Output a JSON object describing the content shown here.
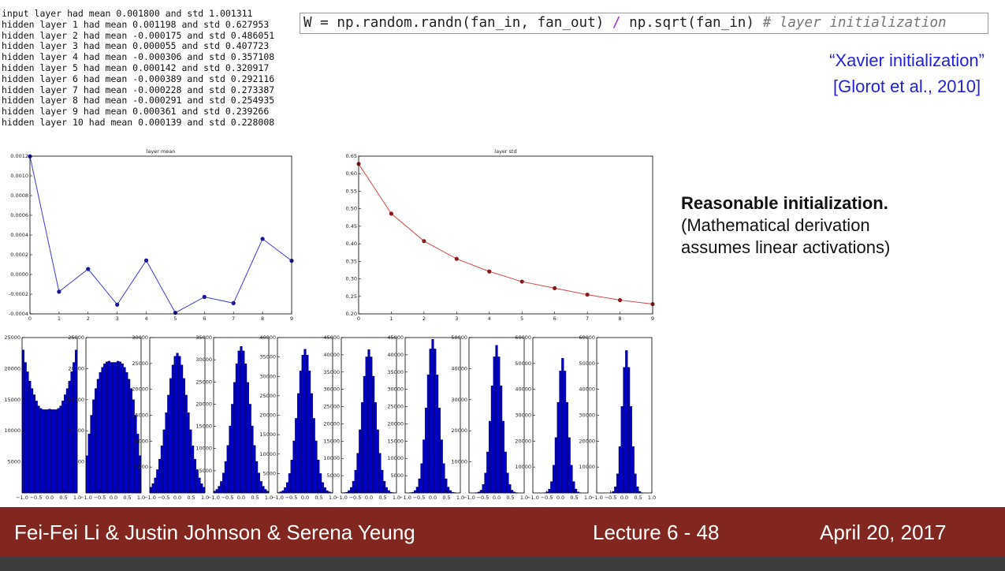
{
  "log": [
    "input layer had mean 0.001800 and std 1.001311",
    "hidden layer 1 had mean 0.001198 and std 0.627953",
    "hidden layer 2 had mean -0.000175 and std 0.486051",
    "hidden layer 3 had mean 0.000055 and std 0.407723",
    "hidden layer 4 had mean -0.000306 and std 0.357108",
    "hidden layer 5 had mean 0.000142 and std 0.320917",
    "hidden layer 6 had mean -0.000389 and std 0.292116",
    "hidden layer 7 had mean -0.000228 and std 0.273387",
    "hidden layer 8 had mean -0.000291 and std 0.254935",
    "hidden layer 9 had mean 0.000361 and std 0.239266",
    "hidden layer 10 had mean 0.000139 and std 0.228008"
  ],
  "code": [
    "W = np.random.randn(fan_in, fan_out)",
    "/",
    "np.sqrt(fan_in)",
    "# layer initialization"
  ],
  "citation": [
    "“Xavier initialization”",
    "[Glorot et al., 2010]"
  ],
  "note": {
    "heading": "Reasonable initialization.",
    "lines": [
      "(Mathematical derivation",
      "assumes linear activations)"
    ]
  },
  "footer": {
    "authors": "Fei-Fei Li & Justin Johnson & Serena Yeung",
    "lecture": "Lecture 6 - 48",
    "date": "April 20, 2017"
  },
  "chart_data": [
    {
      "type": "line",
      "title": "layer mean",
      "x": [
        0,
        1,
        2,
        3,
        4,
        5,
        6,
        7,
        8,
        9
      ],
      "values": [
        0.001198,
        -0.000175,
        5.5e-05,
        -0.000306,
        0.000142,
        -0.000389,
        -0.000228,
        -0.000291,
        0.000361,
        0.000139
      ],
      "color": "#3b3bd6",
      "marker_color": "#1a1a9a",
      "xlim": [
        0,
        9
      ],
      "xticks": [
        0,
        1,
        2,
        3,
        4,
        5,
        6,
        7,
        8,
        9
      ],
      "ylim": [
        -0.0004,
        0.0012
      ],
      "yticks": [
        -0.0004,
        -0.0002,
        {
          "value": 0,
          "label": "0.0000"
        },
        0.0002,
        0.0004,
        0.0006,
        0.0008,
        {
          "value": 0.001,
          "label": "0.0010"
        },
        0.0012
      ]
    },
    {
      "type": "line",
      "title": "layer std",
      "x": [
        0,
        1,
        2,
        3,
        4,
        5,
        6,
        7,
        8,
        9
      ],
      "values": [
        0.627953,
        0.486051,
        0.407723,
        0.357108,
        0.320917,
        0.292116,
        0.273387,
        0.254935,
        0.239266,
        0.228008
      ],
      "color": "#d04a4a",
      "marker_color": "#8b1a1a",
      "xlim": [
        0,
        9
      ],
      "xticks": [
        0,
        1,
        2,
        3,
        4,
        5,
        6,
        7,
        8,
        9
      ],
      "ylim": [
        0.2,
        0.65
      ],
      "yticks": [
        {
          "value": 0.2,
          "label": "0.20"
        },
        0.25,
        {
          "value": 0.3,
          "label": "0.30"
        },
        0.35,
        {
          "value": 0.4,
          "label": "0.40"
        },
        0.45,
        {
          "value": 0.5,
          "label": "0.50"
        },
        0.55,
        {
          "value": 0.6,
          "label": "0.60"
        },
        0.65
      ]
    },
    {
      "type": "histogram",
      "color": "#0000c8",
      "bins": [
        -1,
        -0.92,
        -0.84,
        -0.76,
        -0.68,
        -0.6,
        -0.52,
        -0.44,
        -0.36,
        -0.28,
        -0.2,
        -0.12,
        -0.04,
        0.04,
        0.12,
        0.2,
        0.28,
        0.36,
        0.44,
        0.52,
        0.6,
        0.68,
        0.76,
        0.84,
        0.92,
        1
      ],
      "values": [
        23000,
        21000,
        19500,
        18000,
        16800,
        15800,
        14800,
        14000,
        13600,
        13400,
        13400,
        13400,
        13500,
        13400,
        13400,
        13400,
        13600,
        14000,
        14800,
        15800,
        16800,
        18000,
        19500,
        21000,
        23000
      ],
      "xlim": [
        -1,
        1
      ],
      "xticks": [
        {
          "value": -1,
          "label": "−1.0"
        },
        {
          "value": -0.5,
          "label": "−0.5"
        },
        {
          "value": 0,
          "label": "0.0"
        },
        0.5,
        {
          "value": 1,
          "label": "1.0"
        }
      ],
      "ylim": [
        0,
        25000
      ],
      "yticks": [
        5000,
        10000,
        15000,
        20000,
        25000
      ]
    },
    {
      "type": "histogram",
      "color": "#0000c8",
      "bins": [
        -1,
        -0.92,
        -0.84,
        -0.76,
        -0.68,
        -0.6,
        -0.52,
        -0.44,
        -0.36,
        -0.28,
        -0.2,
        -0.12,
        -0.04,
        0.04,
        0.12,
        0.2,
        0.28,
        0.36,
        0.44,
        0.52,
        0.6,
        0.68,
        0.76,
        0.84,
        0.92,
        1
      ],
      "values": [
        6000,
        9500,
        12500,
        15000,
        16800,
        18300,
        19400,
        20200,
        20800,
        21100,
        21200,
        21000,
        21000,
        21000,
        21200,
        21100,
        20800,
        20200,
        19400,
        18300,
        16800,
        15000,
        12500,
        9500,
        6000
      ],
      "xlim": [
        -1,
        1
      ],
      "xticks": [
        {
          "value": -1,
          "label": "−1.0"
        },
        {
          "value": -0.5,
          "label": "−0.5"
        },
        {
          "value": 0,
          "label": "0.0"
        },
        0.5,
        {
          "value": 1,
          "label": "1.0"
        }
      ],
      "ylim": [
        0,
        25000
      ],
      "yticks": [
        5000,
        10000,
        15000,
        20000,
        25000
      ]
    },
    {
      "type": "histogram",
      "color": "#0000c8",
      "bins": [
        -1,
        -0.92,
        -0.84,
        -0.76,
        -0.68,
        -0.6,
        -0.52,
        -0.44,
        -0.36,
        -0.28,
        -0.2,
        -0.12,
        -0.04,
        0.04,
        0.12,
        0.2,
        0.28,
        0.36,
        0.44,
        0.52,
        0.6,
        0.68,
        0.76,
        0.84,
        0.92,
        1
      ],
      "values": [
        1100,
        1800,
        2900,
        4500,
        6500,
        9100,
        12200,
        15500,
        18900,
        22100,
        24700,
        26400,
        27000,
        26400,
        24700,
        22100,
        18900,
        15500,
        12200,
        9100,
        6500,
        4500,
        2900,
        1800,
        1100
      ],
      "xlim": [
        -1,
        1
      ],
      "xticks": [
        {
          "value": -1,
          "label": "−1.0"
        },
        {
          "value": -0.5,
          "label": "−0.5"
        },
        {
          "value": 0,
          "label": "0.0"
        },
        0.5,
        {
          "value": 1,
          "label": "1.0"
        }
      ],
      "ylim": [
        0,
        30000
      ],
      "yticks": [
        5000,
        10000,
        15000,
        20000,
        25000,
        30000
      ]
    },
    {
      "type": "histogram",
      "color": "#0000c8",
      "bins": [
        -1,
        -0.92,
        -0.84,
        -0.76,
        -0.68,
        -0.6,
        -0.52,
        -0.44,
        -0.36,
        -0.28,
        -0.2,
        -0.12,
        -0.04,
        0.04,
        0.12,
        0.2,
        0.28,
        0.36,
        0.44,
        0.52,
        0.6,
        0.68,
        0.76,
        0.84,
        0.92,
        1
      ],
      "values": [
        400,
        800,
        1500,
        2600,
        4500,
        7100,
        10700,
        15100,
        20000,
        24900,
        29100,
        32000,
        33000,
        32000,
        29100,
        24900,
        20000,
        15100,
        10700,
        7100,
        4500,
        2600,
        1500,
        800,
        400
      ],
      "xlim": [
        -1,
        1
      ],
      "xticks": [
        {
          "value": -1,
          "label": "−1.0"
        },
        {
          "value": -0.5,
          "label": "−0.5"
        },
        {
          "value": 0,
          "label": "0.0"
        },
        0.5,
        {
          "value": 1,
          "label": "1.0"
        }
      ],
      "ylim": [
        0,
        35000
      ],
      "yticks": [
        5000,
        10000,
        15000,
        20000,
        25000,
        30000,
        35000
      ]
    },
    {
      "type": "histogram",
      "color": "#0000c8",
      "bins": [
        -1,
        -0.92,
        -0.84,
        -0.76,
        -0.68,
        -0.6,
        -0.52,
        -0.44,
        -0.36,
        -0.28,
        -0.2,
        -0.12,
        -0.04,
        0.04,
        0.12,
        0.2,
        0.28,
        0.36,
        0.44,
        0.52,
        0.6,
        0.68,
        0.76,
        0.84,
        0.92,
        1
      ],
      "values": [
        100,
        300,
        600,
        1400,
        2700,
        5000,
        8500,
        13400,
        19200,
        25600,
        31400,
        35500,
        37000,
        35500,
        31400,
        25600,
        19200,
        13400,
        8500,
        5000,
        2700,
        1400,
        600,
        300,
        100
      ],
      "xlim": [
        -1,
        1
      ],
      "xticks": [
        {
          "value": -1,
          "label": "−1.0"
        },
        {
          "value": -0.5,
          "label": "−0.5"
        },
        {
          "value": 0,
          "label": "0.0"
        },
        0.5,
        {
          "value": 1,
          "label": "1.0"
        }
      ],
      "ylim": [
        0,
        40000
      ],
      "yticks": [
        5000,
        10000,
        15000,
        20000,
        25000,
        30000,
        35000,
        40000
      ]
    },
    {
      "type": "histogram",
      "color": "#0000c8",
      "bins": [
        -1,
        -0.92,
        -0.84,
        -0.76,
        -0.68,
        -0.6,
        -0.52,
        -0.44,
        -0.36,
        -0.28,
        -0.2,
        -0.12,
        -0.04,
        0.04,
        0.12,
        0.2,
        0.28,
        0.36,
        0.44,
        0.52,
        0.6,
        0.68,
        0.76,
        0.84,
        0.92,
        1
      ],
      "values": [
        0,
        100,
        200,
        700,
        1600,
        3400,
        6600,
        11500,
        18300,
        26200,
        33800,
        39400,
        41500,
        39400,
        33800,
        26200,
        18300,
        11500,
        6600,
        3400,
        1600,
        700,
        200,
        100,
        0
      ],
      "xlim": [
        -1,
        1
      ],
      "xticks": [
        {
          "value": -1,
          "label": "−1.0"
        },
        {
          "value": -0.5,
          "label": "−0.5"
        },
        {
          "value": 0,
          "label": "0.0"
        },
        0.5,
        {
          "value": 1,
          "label": "1.0"
        }
      ],
      "ylim": [
        0,
        45000
      ],
      "yticks": [
        5000,
        10000,
        15000,
        20000,
        25000,
        30000,
        35000,
        40000,
        45000
      ]
    },
    {
      "type": "histogram",
      "color": "#0000c8",
      "bins": [
        -1,
        -0.92,
        -0.84,
        -0.76,
        -0.68,
        -0.6,
        -0.52,
        -0.44,
        -0.36,
        -0.28,
        -0.2,
        -0.12,
        -0.04,
        0.04,
        0.12,
        0.2,
        0.28,
        0.36,
        0.44,
        0.52,
        0.6,
        0.68,
        0.76,
        0.84,
        0.92,
        1
      ],
      "values": [
        0,
        0,
        100,
        200,
        700,
        1700,
        4100,
        8500,
        15400,
        24600,
        34200,
        41700,
        44500,
        41700,
        34200,
        24600,
        15400,
        8500,
        4100,
        1700,
        700,
        200,
        100,
        0,
        0
      ],
      "xlim": [
        -1,
        1
      ],
      "xticks": [
        {
          "value": -1,
          "label": "−1.0"
        },
        {
          "value": -0.5,
          "label": "−0.5"
        },
        {
          "value": 0,
          "label": "0.0"
        },
        0.5,
        {
          "value": 1,
          "label": "1.0"
        }
      ],
      "ylim": [
        0,
        45000
      ],
      "yticks": [
        5000,
        10000,
        15000,
        20000,
        25000,
        30000,
        35000,
        40000,
        45000
      ]
    },
    {
      "type": "histogram",
      "color": "#0000c8",
      "bins": [
        -1,
        -0.92,
        -0.84,
        -0.76,
        -0.68,
        -0.6,
        -0.52,
        -0.44,
        -0.36,
        -0.28,
        -0.2,
        -0.12,
        -0.04,
        0.04,
        0.12,
        0.2,
        0.28,
        0.36,
        0.44,
        0.52,
        0.6,
        0.68,
        0.76,
        0.84,
        0.92,
        1
      ],
      "values": [
        0,
        0,
        0,
        100,
        300,
        900,
        2700,
        6400,
        13200,
        23100,
        34500,
        43800,
        47500,
        43800,
        34500,
        23100,
        13200,
        6400,
        2700,
        900,
        300,
        100,
        0,
        0,
        0
      ],
      "xlim": [
        -1,
        1
      ],
      "xticks": [
        {
          "value": -1,
          "label": "−1.0"
        },
        {
          "value": -0.5,
          "label": "−0.5"
        },
        {
          "value": 0,
          "label": "0.0"
        },
        0.5,
        {
          "value": 1,
          "label": "1.0"
        }
      ],
      "ylim": [
        0,
        50000
      ],
      "yticks": [
        10000,
        20000,
        30000,
        40000,
        50000
      ]
    },
    {
      "type": "histogram",
      "color": "#0000c8",
      "bins": [
        -1,
        -0.92,
        -0.84,
        -0.76,
        -0.68,
        -0.6,
        -0.52,
        -0.44,
        -0.36,
        -0.28,
        -0.2,
        -0.12,
        -0.04,
        0.04,
        0.12,
        0.2,
        0.28,
        0.36,
        0.44,
        0.52,
        0.6,
        0.68,
        0.76,
        0.84,
        0.92,
        1
      ],
      "values": [
        0,
        0,
        0,
        0,
        0,
        100,
        400,
        1500,
        4400,
        10700,
        21400,
        35000,
        47100,
        52000,
        47100,
        35000,
        21400,
        10700,
        4400,
        1500,
        400,
        100,
        0,
        0,
        0
      ],
      "xlim": [
        -1,
        1
      ],
      "xticks": [
        {
          "value": -1,
          "label": "−1.0"
        },
        {
          "value": -0.5,
          "label": "−0.5"
        },
        {
          "value": 0,
          "label": "0.0"
        },
        0.5,
        {
          "value": 1,
          "label": "1.0"
        }
      ],
      "ylim": [
        0,
        60000
      ],
      "yticks": [
        10000,
        20000,
        30000,
        40000,
        50000,
        60000
      ]
    },
    {
      "type": "histogram",
      "color": "#0000c8",
      "bins": [
        -1,
        -0.92,
        -0.84,
        -0.76,
        -0.68,
        -0.6,
        -0.52,
        -0.44,
        -0.36,
        -0.28,
        -0.2,
        -0.12,
        -0.04,
        0.04,
        0.12,
        0.2,
        0.28,
        0.36,
        0.44,
        0.52,
        0.6,
        0.68,
        0.76,
        0.84,
        0.92,
        1
      ],
      "values": [
        0,
        0,
        0,
        0,
        0,
        0,
        100,
        600,
        2400,
        7400,
        17900,
        33400,
        48500,
        55000,
        48500,
        33400,
        17900,
        7400,
        2400,
        600,
        100,
        0,
        0,
        0,
        0
      ],
      "xlim": [
        -1,
        1
      ],
      "xticks": [
        {
          "value": -1,
          "label": "−1.0"
        },
        {
          "value": -0.5,
          "label": "−0.5"
        },
        {
          "value": 0,
          "label": "0.0"
        },
        0.5,
        {
          "value": 1,
          "label": "1.0"
        }
      ],
      "ylim": [
        0,
        60000
      ],
      "yticks": [
        10000,
        20000,
        30000,
        40000,
        50000,
        60000
      ]
    }
  ]
}
